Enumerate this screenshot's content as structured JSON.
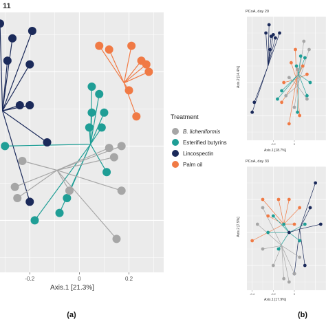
{
  "header_fragment": "11",
  "panel_labels": {
    "left": "(a)",
    "right": "(b)"
  },
  "colors": {
    "B. licheniformis": "#a6a6a6",
    "Esterified butyrins": "#1f9e96",
    "Lincospectin": "#1b2a5a",
    "Palm oil": "#f07a45",
    "panel_bg": "#ebebeb",
    "grid": "#ffffff"
  },
  "legend": {
    "title": "Treatment",
    "entries": [
      {
        "label": "B. licheniformis",
        "italic": true
      },
      {
        "label": "Esterified butyrins",
        "italic": false
      },
      {
        "label": "Lincospectin",
        "italic": false
      },
      {
        "label": "Palm oil",
        "italic": false
      }
    ]
  },
  "chart_data": [
    {
      "type": "scatter",
      "subtype": "pcoa-spider",
      "title": "",
      "xlabel": "Axis.1   [21.3%]",
      "ylabel": "",
      "xlim": [
        -0.32,
        0.34
      ],
      "ylim": [
        -0.34,
        0.36
      ],
      "xticks": [
        -0.2,
        0,
        0.2
      ],
      "xtick_labels": [
        "-0.2",
        "0",
        "0.2"
      ],
      "grid": true,
      "legend_position": "right",
      "series": [
        {
          "name": "Lincospectin",
          "centroid": [
            -0.31,
            0.095
          ],
          "points": [
            [
              -0.32,
              0.33
            ],
            [
              -0.19,
              0.31
            ],
            [
              -0.27,
              0.29
            ],
            [
              -0.29,
              0.23
            ],
            [
              -0.2,
              0.22
            ],
            [
              -0.24,
              0.11
            ],
            [
              -0.2,
              0.11
            ],
            [
              -0.13,
              0.01
            ],
            [
              -0.2,
              -0.15
            ]
          ]
        },
        {
          "name": "Palm oil",
          "centroid": [
            0.18,
            0.17
          ],
          "points": [
            [
              0.08,
              0.27
            ],
            [
              0.12,
              0.26
            ],
            [
              0.21,
              0.27
            ],
            [
              0.25,
              0.23
            ],
            [
              0.27,
              0.22
            ],
            [
              0.28,
              0.2
            ],
            [
              0.2,
              0.15
            ],
            [
              0.23,
              0.08
            ]
          ]
        },
        {
          "name": "Esterified butyrins",
          "centroid": [
            0.045,
            0.005
          ],
          "points": [
            [
              -0.3,
              0.0
            ],
            [
              0.04,
              0.05
            ],
            [
              0.09,
              0.05
            ],
            [
              0.05,
              0.09
            ],
            [
              0.1,
              0.09
            ],
            [
              0.05,
              0.16
            ],
            [
              0.08,
              0.14
            ],
            [
              0.11,
              -0.07
            ],
            [
              -0.05,
              -0.14
            ],
            [
              -0.08,
              -0.18
            ],
            [
              -0.18,
              -0.2
            ]
          ]
        },
        {
          "name": "B. licheniformis",
          "centroid": [
            -0.09,
            -0.065
          ],
          "points": [
            [
              0.12,
              -0.005
            ],
            [
              0.17,
              -0.0
            ],
            [
              0.14,
              -0.03
            ],
            [
              -0.23,
              -0.04
            ],
            [
              -0.26,
              -0.11
            ],
            [
              -0.25,
              -0.14
            ],
            [
              -0.04,
              -0.12
            ],
            [
              0.17,
              -0.12
            ],
            [
              0.15,
              -0.25
            ]
          ]
        }
      ]
    },
    {
      "type": "scatter",
      "subtype": "pcoa-spider",
      "title": "PCoA, day 20",
      "xlabel": "Axis.1   [18.7%]",
      "ylabel": "Axis.2   [14.4%]",
      "xlim": [
        -0.45,
        0.3
      ],
      "ylim": [
        -0.35,
        0.4
      ],
      "xticks": [
        -0.2,
        0
      ],
      "xtick_labels": [
        "-0.2",
        "0"
      ],
      "grid": true,
      "series": [
        {
          "name": "Lincospectin",
          "centroid": [
            -0.25,
            0.1
          ],
          "points": [
            [
              -0.24,
              0.35
            ],
            [
              -0.27,
              0.3
            ],
            [
              -0.2,
              0.29
            ],
            [
              -0.14,
              0.3
            ],
            [
              -0.18,
              0.27
            ],
            [
              -0.22,
              0.28
            ],
            [
              -0.23,
              0.2
            ],
            [
              -0.38,
              -0.12
            ],
            [
              -0.4,
              -0.18
            ]
          ]
        },
        {
          "name": "Palm oil",
          "centroid": [
            0.02,
            0.02
          ],
          "points": [
            [
              0.01,
              0.2
            ],
            [
              0.08,
              0.1
            ],
            [
              0.12,
              0.05
            ],
            [
              -0.03,
              0.12
            ],
            [
              -0.1,
              0.0
            ],
            [
              -0.12,
              -0.12
            ],
            [
              0.05,
              -0.2
            ],
            [
              -0.05,
              -0.25
            ]
          ]
        },
        {
          "name": "Esterified butyrins",
          "centroid": [
            0.04,
            0.05
          ],
          "points": [
            [
              0.06,
              0.16
            ],
            [
              0.1,
              0.15
            ],
            [
              0.02,
              0.1
            ],
            [
              -0.16,
              -0.1
            ],
            [
              -0.12,
              -0.05
            ],
            [
              0.03,
              -0.18
            ],
            [
              0.12,
              -0.08
            ],
            [
              0.15,
              0.0
            ]
          ]
        },
        {
          "name": "B. licheniformis",
          "centroid": [
            0.03,
            -0.02
          ],
          "points": [
            [
              0.09,
              0.25
            ],
            [
              0.14,
              0.2
            ],
            [
              0.03,
              0.08
            ],
            [
              -0.05,
              0.03
            ],
            [
              0.12,
              -0.1
            ],
            [
              0.0,
              -0.15
            ],
            [
              -0.08,
              -0.08
            ]
          ]
        }
      ]
    },
    {
      "type": "scatter",
      "subtype": "pcoa-spider",
      "title": "PCoA, day 33",
      "xlabel": "Axis.1   [17.9%]",
      "ylabel": "Axis.2   [7.9%]",
      "xlim": [
        -0.45,
        0.3
      ],
      "ylim": [
        -0.35,
        0.4
      ],
      "xticks": [
        -0.4,
        -0.2,
        0
      ],
      "xtick_labels": [
        "-0.4",
        "-0.2",
        "0"
      ],
      "grid": true,
      "series": [
        {
          "name": "Lincospectin",
          "centroid": [
            0.05,
            0.02
          ],
          "points": [
            [
              0.2,
              0.3
            ],
            [
              0.15,
              0.15
            ],
            [
              0.1,
              -0.2
            ],
            [
              0.0,
              -0.25
            ],
            [
              -0.05,
              0.0
            ],
            [
              0.25,
              0.05
            ]
          ]
        },
        {
          "name": "Palm oil",
          "centroid": [
            -0.1,
            0.05
          ],
          "points": [
            [
              -0.3,
              0.2
            ],
            [
              -0.4,
              -0.05
            ],
            [
              -0.25,
              0.1
            ],
            [
              -0.15,
              0.2
            ],
            [
              0.05,
              0.15
            ],
            [
              -0.05,
              0.2
            ],
            [
              0.0,
              0.05
            ]
          ]
        },
        {
          "name": "Esterified butyrins",
          "centroid": [
            -0.05,
            0.0
          ],
          "points": [
            [
              -0.2,
              0.1
            ],
            [
              -0.1,
              0.05
            ],
            [
              0.05,
              -0.05
            ],
            [
              -0.15,
              -0.1
            ],
            [
              0.1,
              0.05
            ],
            [
              -0.25,
              0.0
            ]
          ]
        },
        {
          "name": "B. licheniformis",
          "centroid": [
            -0.12,
            -0.08
          ],
          "points": [
            [
              -0.3,
              0.15
            ],
            [
              -0.35,
              0.05
            ],
            [
              -0.3,
              -0.1
            ],
            [
              -0.2,
              -0.2
            ],
            [
              -0.1,
              -0.28
            ],
            [
              -0.05,
              -0.3
            ],
            [
              0.0,
              -0.25
            ],
            [
              0.05,
              -0.15
            ]
          ]
        }
      ]
    }
  ]
}
